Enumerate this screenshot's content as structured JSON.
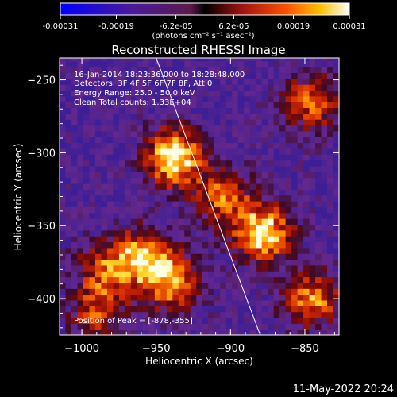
{
  "colorbar": {
    "tick_labels": [
      "-0.00031",
      "-0.00019",
      "-6.2e-05",
      "6.2e-05",
      "0.00019",
      "0.00031"
    ],
    "tick_values": [
      -0.00031,
      -0.00019,
      -6.2e-05,
      6.2e-05,
      0.00019,
      0.00031
    ],
    "range": [
      -0.00031,
      0.00031
    ],
    "units": "(photons cm⁻² s⁻¹ asec⁻²)"
  },
  "chart_data": {
    "type": "heatmap",
    "title": "Reconstructed RHESSI Image",
    "xlabel": "Heliocentric X (arcsec)",
    "ylabel": "Heliocentric Y (arcsec)",
    "xlim": [
      -1015,
      -827
    ],
    "ylim": [
      -425,
      -235
    ],
    "x_ticks": [
      -1000,
      -950,
      -900,
      -850
    ],
    "y_ticks": [
      -250,
      -300,
      -350,
      -400
    ],
    "x_tick_labels": [
      "−1000",
      "−950",
      "−900",
      "−850"
    ],
    "y_tick_labels": [
      "−250",
      "−300",
      "−350",
      "−400"
    ],
    "annotations": [
      "16-Jan-2014 18:23:36.000 to 18:28:48.000",
      "Detectors: 3F 4F 5F 6F 7F 8F, Att 0",
      "Energy Range: 25.0 - 50.0 keV",
      "Clean    Total counts: 1.33E+04",
      "Position of Peak = [-878,-355]"
    ],
    "peak_position": [
      -878,
      -355
    ],
    "limb_line": [
      [
        -950,
        -235
      ],
      [
        -880,
        -425
      ]
    ],
    "bright_sources": [
      {
        "x": -938,
        "y": -303,
        "intensity": 1.0
      },
      {
        "x": -878,
        "y": -355,
        "intensity": 0.95
      },
      {
        "x": -958,
        "y": -370,
        "intensity": 0.75
      },
      {
        "x": -940,
        "y": -390,
        "intensity": 0.7
      },
      {
        "x": -845,
        "y": -400,
        "intensity": 0.7
      },
      {
        "x": -845,
        "y": -265,
        "intensity": 0.65
      },
      {
        "x": -985,
        "y": -380,
        "intensity": 0.55
      },
      {
        "x": -990,
        "y": -410,
        "intensity": 0.5
      },
      {
        "x": -905,
        "y": -330,
        "intensity": 0.6
      }
    ],
    "colormap": "blue-purple-red-yellow-white"
  },
  "footer": {
    "date_stamp": "11-May-2022 20:24"
  }
}
